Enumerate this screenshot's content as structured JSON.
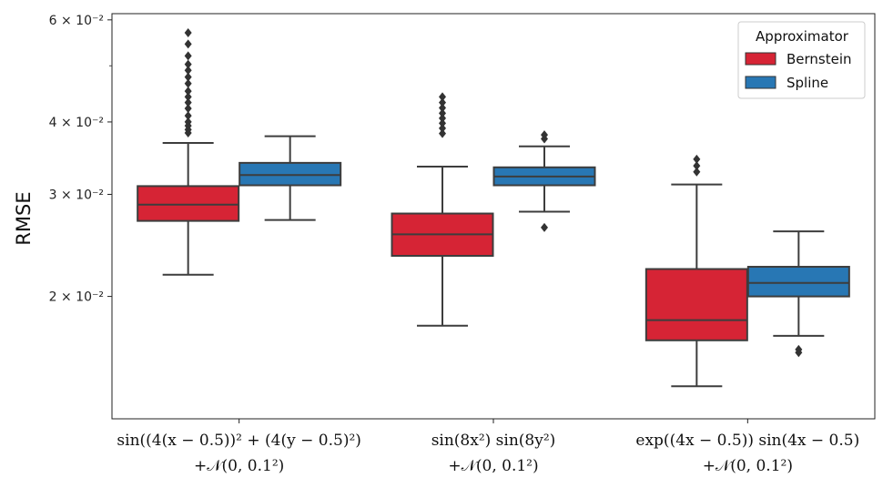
{
  "chart_data": {
    "type": "boxplot",
    "ylabel": "RMSE",
    "yscale": "log",
    "ylim": [
      0.0123,
      0.0615
    ],
    "yticks": [
      {
        "value": 0.02,
        "label": "2 × 10⁻²"
      },
      {
        "value": 0.03,
        "label": "3 × 10⁻²"
      },
      {
        "value": 0.04,
        "label": "4 × 10⁻²"
      },
      {
        "value": 0.06,
        "label": "6 × 10⁻²"
      }
    ],
    "categories": [
      {
        "line1": "sin((4(x − 0.5))² + (4(y − 0.5)²)",
        "line2": "+𝒩(0, 0.1²)"
      },
      {
        "line1": "sin(8x²) sin(8y²)",
        "line2": "+𝒩(0, 0.1²)"
      },
      {
        "line1": "exp((4x − 0.5)) sin(4x − 0.5)",
        "line2": "+𝒩(0, 0.1²)"
      }
    ],
    "legend": {
      "title": "Approximator",
      "position": "top-right"
    },
    "series": [
      {
        "name": "Bernstein",
        "color": "#d62435",
        "boxes": [
          {
            "whisker_low": 0.0218,
            "q1": 0.027,
            "median": 0.0288,
            "q3": 0.031,
            "whisker_high": 0.0368,
            "outliers": [
              0.0383,
              0.0388,
              0.0394,
              0.04,
              0.041,
              0.0422,
              0.0432,
              0.0442,
              0.0452,
              0.0466,
              0.0478,
              0.0491,
              0.0503,
              0.052,
              0.0545,
              0.057
            ]
          },
          {
            "whisker_low": 0.0178,
            "q1": 0.0235,
            "median": 0.0256,
            "q3": 0.0278,
            "whisker_high": 0.0335,
            "outliers": [
              0.0382,
              0.039,
              0.0398,
              0.0406,
              0.0414,
              0.0423,
              0.0432,
              0.0442
            ]
          },
          {
            "whisker_low": 0.014,
            "q1": 0.0168,
            "median": 0.0182,
            "q3": 0.0223,
            "whisker_high": 0.0312,
            "outliers": [
              0.0328,
              0.0336,
              0.0345
            ]
          }
        ]
      },
      {
        "name": "Spline",
        "color": "#2877b4",
        "boxes": [
          {
            "whisker_low": 0.0271,
            "q1": 0.0311,
            "median": 0.0324,
            "q3": 0.034,
            "whisker_high": 0.0378,
            "outliers": []
          },
          {
            "whisker_low": 0.028,
            "q1": 0.0311,
            "median": 0.0322,
            "q3": 0.0334,
            "whisker_high": 0.0363,
            "outliers": [
              0.0263,
              0.0374,
              0.038
            ]
          },
          {
            "whisker_low": 0.0171,
            "q1": 0.02,
            "median": 0.0211,
            "q3": 0.0225,
            "whisker_high": 0.0259,
            "outliers": [
              0.016,
              0.0162
            ]
          }
        ]
      }
    ]
  }
}
